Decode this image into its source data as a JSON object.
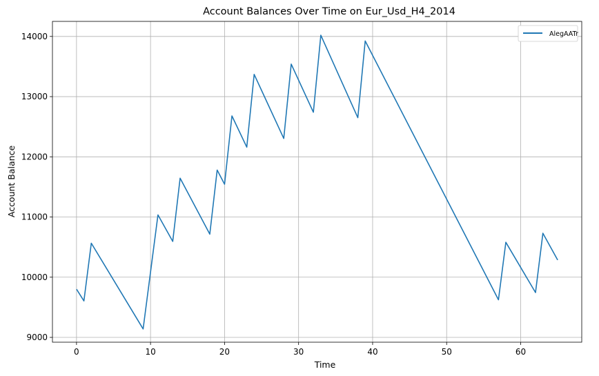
{
  "chart_data": {
    "type": "line",
    "title": "Account Balances Over Time on Eur_Usd_H4_2014",
    "xlabel": "Time",
    "ylabel": "Account Balance",
    "xlim": [
      -3.25,
      68.25
    ],
    "ylim": [
      8920,
      14250
    ],
    "xticks": [
      0,
      10,
      20,
      30,
      40,
      50,
      60
    ],
    "yticks": [
      9000,
      10000,
      11000,
      12000,
      13000,
      14000
    ],
    "grid": true,
    "legend": "top-right",
    "series": [
      {
        "name": "AlegAATr",
        "color": "#1f77b4",
        "x": [
          0,
          1,
          2,
          9,
          11,
          13,
          14,
          18,
          19,
          20,
          21,
          23,
          24,
          28,
          29,
          32,
          33,
          38,
          39,
          57,
          58,
          62,
          63,
          65
        ],
        "y": [
          9800,
          9605,
          10565,
          9140,
          11035,
          10595,
          11645,
          10715,
          11780,
          11545,
          12680,
          12160,
          13370,
          12305,
          13540,
          12740,
          14020,
          12650,
          13925,
          9625,
          10580,
          9745,
          10730,
          10285
        ]
      }
    ]
  }
}
